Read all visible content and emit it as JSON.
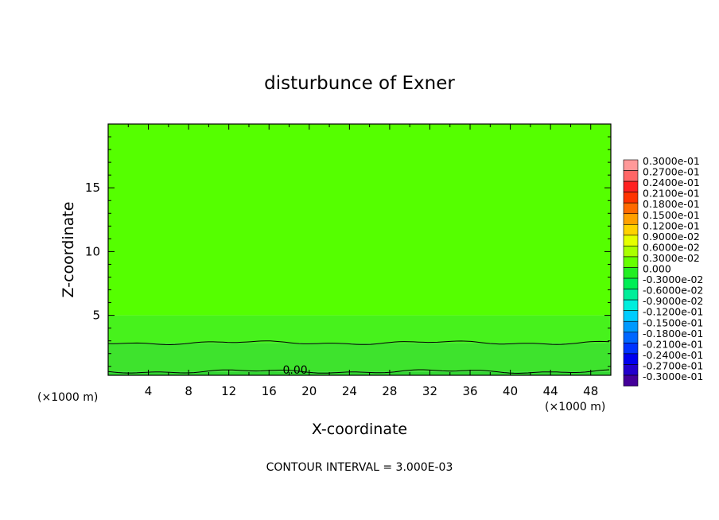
{
  "chart_data": {
    "type": "heatmap",
    "title": "disturbunce of Exner",
    "xlabel": "X-coordinate",
    "ylabel": "Z-coordinate",
    "x_unit_left": "(×1000 m)",
    "x_unit_right": "(×1000 m)",
    "xlim": [
      0,
      50
    ],
    "ylim": [
      0.3,
      20
    ],
    "x_ticks": [
      "4",
      "8",
      "12",
      "16",
      "20",
      "24",
      "28",
      "32",
      "36",
      "40",
      "44",
      "48"
    ],
    "y_ticks": [
      "5",
      "10",
      "15"
    ],
    "footer": "CONTOUR INTERVAL = 3.000E-03",
    "contour_label": "0.00",
    "contour_lines": [
      {
        "level": 0.0,
        "z": 0.6
      },
      {
        "level": 0.0,
        "z": 2.85
      }
    ],
    "field_bands": [
      {
        "z_from": 0.3,
        "z_to": 0.6,
        "value": "0.000 to 0.3000e-02",
        "color": "#33d633"
      },
      {
        "z_from": 0.6,
        "z_to": 2.85,
        "value": "0.000 to 0.3000e-02",
        "color": "#3ee32d"
      },
      {
        "z_from": 2.85,
        "z_to": 5.0,
        "value": "0.3000e-02 to 0.6000e-02",
        "color": "#47f21c"
      },
      {
        "z_from": 5.0,
        "z_to": 20.0,
        "value": "0.6000e-02 to 0.9000e-02",
        "color": "#55ff00"
      }
    ],
    "legend": {
      "labels": [
        "0.3000e-01",
        "0.2700e-01",
        "0.2400e-01",
        "0.2100e-01",
        "0.1800e-01",
        "0.1500e-01",
        "0.1200e-01",
        "0.9000e-02",
        "0.6000e-02",
        "0.3000e-02",
        "0.000",
        "-0.3000e-02",
        "-0.6000e-02",
        "-0.9000e-02",
        "-0.1200e-01",
        "-0.1500e-01",
        "-0.1800e-01",
        "-0.2100e-01",
        "-0.2400e-01",
        "-0.2700e-01",
        "-0.3000e-01"
      ],
      "colors": [
        "#ff9999",
        "#ff6666",
        "#ff2020",
        "#ff3300",
        "#ff6a00",
        "#ffa000",
        "#ffd200",
        "#e6ff00",
        "#aaff00",
        "#66ff00",
        "#22ee22",
        "#00ee55",
        "#00ee99",
        "#00eedd",
        "#00ccff",
        "#0099ff",
        "#0066ff",
        "#0033ff",
        "#0000ee",
        "#2200cc",
        "#440099"
      ]
    }
  }
}
